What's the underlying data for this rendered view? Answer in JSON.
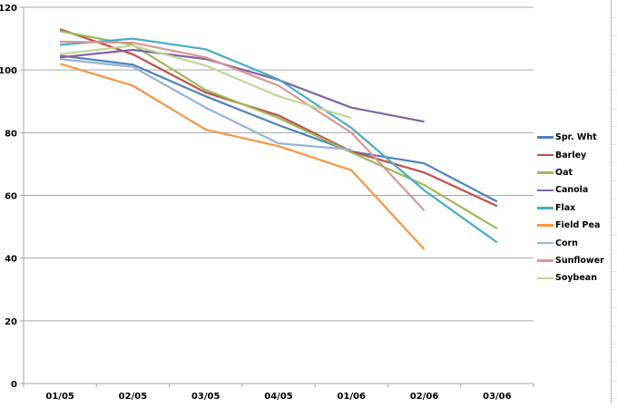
{
  "chart_data": {
    "type": "line",
    "title": "",
    "xlabel": "",
    "ylabel": "",
    "categories": [
      "01/05",
      "02/05",
      "03/05",
      "04/05",
      "01/06",
      "02/06",
      "03/06"
    ],
    "ylim": [
      0,
      120
    ],
    "yticks": [
      0,
      20,
      40,
      60,
      80,
      100,
      120
    ],
    "grid": true,
    "legend_position": "right",
    "series": [
      {
        "name": "Spr. Wht",
        "color": "#4F81BD",
        "values": [
          104.6,
          101.7,
          91.6,
          82.4,
          74.0,
          70.2,
          58.0
        ]
      },
      {
        "name": "Barley",
        "color": "#C0504D",
        "values": [
          113.0,
          105.0,
          92.8,
          85.5,
          74.0,
          67.3,
          56.6
        ]
      },
      {
        "name": "Oat",
        "color": "#9BBB59",
        "values": [
          112.4,
          108.0,
          93.6,
          84.7,
          73.7,
          63.3,
          49.4
        ]
      },
      {
        "name": "Canola",
        "color": "#8064A2",
        "values": [
          104.0,
          106.4,
          103.5,
          96.8,
          88.0,
          83.5,
          null
        ]
      },
      {
        "name": "Flax",
        "color": "#4BACC6",
        "values": [
          108.0,
          110.0,
          106.6,
          97.0,
          81.5,
          61.6,
          45.0
        ]
      },
      {
        "name": "Field Pea",
        "color": "#F79646",
        "values": [
          102.0,
          95.0,
          81.0,
          75.7,
          68.0,
          42.8,
          null
        ]
      },
      {
        "name": "Corn",
        "color": "#95B3D7",
        "values": [
          103.5,
          101.0,
          88.0,
          76.6,
          74.6,
          null,
          null
        ]
      },
      {
        "name": "Sunflower",
        "color": "#D99694",
        "values": [
          109.0,
          108.7,
          104.0,
          95.0,
          80.0,
          55.2,
          null
        ]
      },
      {
        "name": "Soybean",
        "color": "#C3D69B",
        "values": [
          105.0,
          107.8,
          101.4,
          91.6,
          84.7,
          null,
          null
        ]
      }
    ]
  }
}
